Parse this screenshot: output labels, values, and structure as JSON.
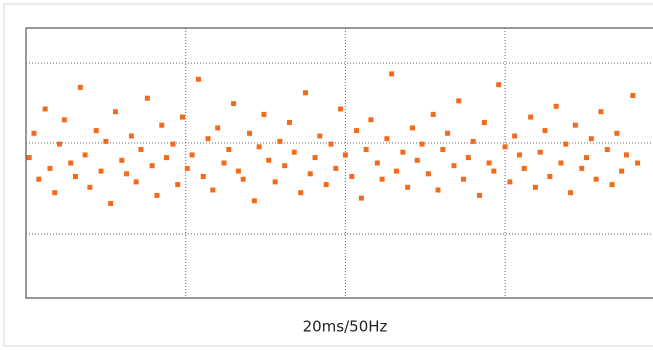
{
  "chart_data": {
    "type": "scatter",
    "x_label": "20ms/50Hz",
    "color": "#f26b1d",
    "grid": true,
    "xlim": [
      0,
      3.92
    ],
    "ylim": [
      0,
      100
    ],
    "xticks": [
      1,
      2,
      3
    ],
    "yticks": [
      23.7,
      57.4,
      87
    ],
    "x": [
      0.02,
      0.05,
      0.08,
      0.12,
      0.15,
      0.18,
      0.21,
      0.24,
      0.28,
      0.31,
      0.34,
      0.37,
      0.4,
      0.44,
      0.47,
      0.5,
      0.53,
      0.56,
      0.6,
      0.63,
      0.66,
      0.69,
      0.72,
      0.76,
      0.79,
      0.82,
      0.85,
      0.88,
      0.92,
      0.95,
      0.98,
      1.01,
      1.04,
      1.08,
      1.11,
      1.14,
      1.17,
      1.2,
      1.24,
      1.27,
      1.3,
      1.33,
      1.36,
      1.4,
      1.43,
      1.46,
      1.49,
      1.52,
      1.56,
      1.59,
      1.62,
      1.65,
      1.68,
      1.72,
      1.75,
      1.78,
      1.81,
      1.84,
      1.88,
      1.91,
      1.94,
      1.97,
      2.0,
      2.04,
      2.07,
      2.1,
      2.13,
      2.16,
      2.2,
      2.23,
      2.26,
      2.29,
      2.32,
      2.36,
      2.39,
      2.42,
      2.45,
      2.48,
      2.52,
      2.55,
      2.58,
      2.61,
      2.64,
      2.68,
      2.71,
      2.74,
      2.77,
      2.8,
      2.84,
      2.87,
      2.9,
      2.93,
      2.96,
      3.0,
      3.03,
      3.06,
      3.09,
      3.12,
      3.16,
      3.19,
      3.22,
      3.25,
      3.28,
      3.32,
      3.35,
      3.38,
      3.41,
      3.44,
      3.48,
      3.51,
      3.54,
      3.57,
      3.6,
      3.64,
      3.67,
      3.7,
      3.73,
      3.76,
      3.8,
      3.83
    ],
    "values": [
      52,
      61,
      44,
      70,
      48,
      39,
      57,
      66,
      50,
      45,
      78,
      53,
      41,
      62,
      47,
      58,
      35,
      69,
      51,
      46,
      60,
      43,
      55,
      74,
      49,
      38,
      64,
      52,
      57,
      42,
      67,
      48,
      53,
      81,
      45,
      59,
      40,
      63,
      50,
      55,
      72,
      47,
      44,
      61,
      36,
      56,
      68,
      51,
      43,
      58,
      49,
      65,
      54,
      39,
      76,
      46,
      52,
      60,
      42,
      57,
      48,
      70,
      53,
      45,
      62,
      37,
      55,
      66,
      50,
      44,
      59,
      83,
      47,
      54,
      41,
      63,
      51,
      57,
      46,
      68,
      40,
      55,
      61,
      49,
      73,
      44,
      52,
      58,
      38,
      65,
      50,
      47,
      79,
      56,
      43,
      60,
      53,
      48,
      67,
      41,
      54,
      62,
      45,
      71,
      50,
      57,
      39,
      64,
      48,
      52,
      59,
      44,
      69,
      55,
      42,
      61,
      47,
      53,
      75,
      50
    ]
  }
}
